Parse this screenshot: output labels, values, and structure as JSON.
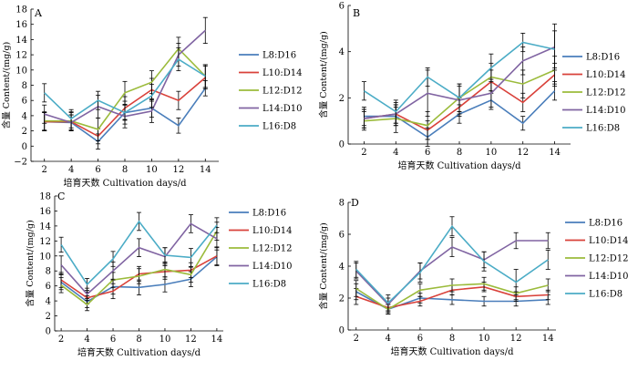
{
  "colors": {
    "L8:D16": "#4a7ebb",
    "L10:D14": "#d9413a",
    "L12:D12": "#9bbb3b",
    "L14:D10": "#8064a2",
    "L16:D8": "#4bacc6"
  },
  "chart_data": [
    {
      "type": "line",
      "panel_label": "A",
      "xlabel": "培育天数 Cultivation days/d",
      "ylabel": "含量 Content/(mg/g)",
      "x": [
        2,
        4,
        6,
        8,
        10,
        12,
        14
      ],
      "xlim": [
        1,
        15
      ],
      "ylim": [
        -2,
        18
      ],
      "yticks": [
        -2,
        0,
        2,
        4,
        6,
        8,
        10,
        12,
        14,
        16,
        18
      ],
      "legend_position": "right",
      "series": [
        {
          "name": "L8:D16",
          "values": [
            3.2,
            3.1,
            0.6,
            4.4,
            5.0,
            2.7,
            7.6
          ],
          "errors": [
            1.2,
            1.0,
            1.0,
            1.0,
            1.2,
            1.0,
            1.0
          ]
        },
        {
          "name": "L10:D14",
          "values": [
            3.2,
            3.2,
            1.3,
            5.0,
            7.4,
            6.0,
            9.0
          ],
          "errors": [
            1.2,
            1.2,
            1.0,
            1.5,
            1.5,
            1.2,
            1.5
          ]
        },
        {
          "name": "L12:D12",
          "values": [
            3.3,
            3.3,
            2.2,
            7.0,
            8.4,
            12.8,
            9.2
          ],
          "errors": [
            1.2,
            1.2,
            1.5,
            1.5,
            1.5,
            1.5,
            1.5
          ]
        },
        {
          "name": "L14:D10",
          "values": [
            4.2,
            3.1,
            5.2,
            3.9,
            4.6,
            12.0,
            15.2
          ],
          "errors": [
            1.2,
            1.0,
            1.5,
            1.5,
            1.5,
            1.5,
            1.7
          ]
        },
        {
          "name": "L16:D8",
          "values": [
            7.0,
            3.6,
            6.0,
            4.4,
            6.6,
            11.4,
            9.2
          ],
          "errors": [
            1.2,
            1.2,
            1.2,
            1.5,
            1.5,
            1.5,
            1.5
          ]
        }
      ]
    },
    {
      "type": "line",
      "panel_label": "B",
      "xlabel": "培育天数 Cultivation days/d",
      "ylabel": "含量 Content/(mg/g)",
      "x": [
        2,
        4,
        6,
        8,
        10,
        12,
        14
      ],
      "xlim": [
        1,
        15
      ],
      "ylim": [
        0,
        6
      ],
      "yticks": [
        0,
        2,
        4,
        6
      ],
      "legend_position": "right",
      "series": [
        {
          "name": "L8:D16",
          "values": [
            1.2,
            1.2,
            0.3,
            1.3,
            1.9,
            0.9,
            2.3
          ],
          "errors": [
            0.4,
            0.4,
            0.4,
            0.4,
            0.4,
            0.3,
            0.4
          ]
        },
        {
          "name": "L10:D14",
          "values": [
            1.1,
            1.3,
            0.6,
            1.6,
            2.7,
            1.8,
            3.0
          ],
          "errors": [
            0.4,
            0.4,
            0.4,
            0.4,
            0.5,
            0.4,
            0.5
          ]
        },
        {
          "name": "L12:D12",
          "values": [
            1.0,
            1.1,
            0.8,
            2.0,
            2.9,
            2.6,
            3.2
          ],
          "errors": [
            0.4,
            0.6,
            0.6,
            0.6,
            0.6,
            0.6,
            0.6
          ]
        },
        {
          "name": "L14:D10",
          "values": [
            1.1,
            1.3,
            2.2,
            1.9,
            2.2,
            3.6,
            4.2
          ],
          "errors": [
            0.4,
            0.5,
            1.0,
            0.6,
            0.6,
            0.6,
            1.0
          ]
        },
        {
          "name": "L16:D8",
          "values": [
            2.3,
            1.4,
            2.9,
            2.0,
            3.3,
            4.4,
            4.1
          ],
          "errors": [
            0.4,
            0.5,
            0.4,
            0.6,
            0.6,
            0.4,
            0.8
          ]
        }
      ]
    },
    {
      "type": "line",
      "panel_label": "C",
      "xlabel": "培育天数 Cultivation days/d",
      "ylabel": "含量 Content/(mg/g)",
      "x": [
        2,
        4,
        6,
        8,
        10,
        12,
        14
      ],
      "xlim": [
        1.5,
        14.5
      ],
      "ylim": [
        0,
        18
      ],
      "yticks": [
        0,
        2,
        4,
        6,
        8,
        10,
        12,
        14,
        16,
        18
      ],
      "legend_position": "right",
      "series": [
        {
          "name": "L8:D16",
          "values": [
            6.5,
            3.9,
            5.9,
            5.8,
            6.2,
            6.9,
            9.9
          ],
          "errors": [
            1.0,
            0.8,
            1.0,
            1.0,
            1.0,
            1.0,
            1.2
          ]
        },
        {
          "name": "L10:D14",
          "values": [
            6.8,
            4.4,
            5.3,
            7.6,
            7.9,
            8.1,
            10.0
          ],
          "errors": [
            1.0,
            0.8,
            1.0,
            1.0,
            1.0,
            1.0,
            1.2
          ]
        },
        {
          "name": "L12:D12",
          "values": [
            6.1,
            3.5,
            6.8,
            7.3,
            8.2,
            7.5,
            13.3
          ],
          "errors": [
            1.0,
            0.8,
            1.0,
            1.0,
            1.0,
            1.0,
            1.2
          ]
        },
        {
          "name": "L14:D10",
          "values": [
            8.8,
            4.9,
            8.0,
            11.1,
            9.9,
            14.3,
            12.3
          ],
          "errors": [
            1.2,
            0.8,
            1.2,
            1.2,
            1.2,
            1.2,
            1.5
          ]
        },
        {
          "name": "L16:D8",
          "values": [
            11.5,
            6.2,
            9.6,
            14.6,
            10.1,
            9.8,
            14.1
          ],
          "errors": [
            1.0,
            0.8,
            1.0,
            1.2,
            1.0,
            1.2,
            1.0
          ]
        }
      ]
    },
    {
      "type": "line",
      "panel_label": "D",
      "xlabel": "培育天数 Cultivation days/d",
      "ylabel": "含量 Content/(mg/g)",
      "x": [
        2,
        4,
        6,
        8,
        10,
        12,
        14
      ],
      "xlim": [
        1.5,
        14.5
      ],
      "ylim": [
        0,
        8
      ],
      "yticks": [
        0,
        2,
        4,
        6,
        8
      ],
      "legend_position": "right",
      "series": [
        {
          "name": "L8:D16",
          "values": [
            2.4,
            1.3,
            2.0,
            1.9,
            1.8,
            1.8,
            1.9
          ],
          "errors": [
            0.5,
            0.3,
            0.3,
            0.3,
            0.3,
            0.3,
            0.3
          ]
        },
        {
          "name": "L10:D14",
          "values": [
            2.1,
            1.4,
            1.8,
            2.5,
            2.7,
            2.1,
            2.2
          ],
          "errors": [
            0.5,
            0.3,
            0.3,
            0.3,
            0.3,
            0.3,
            0.3
          ]
        },
        {
          "name": "L12:D12",
          "values": [
            2.6,
            1.3,
            2.5,
            2.8,
            2.9,
            2.3,
            2.8
          ],
          "errors": [
            0.5,
            0.3,
            0.4,
            0.4,
            0.4,
            0.4,
            0.4
          ]
        },
        {
          "name": "L14:D10",
          "values": [
            3.7,
            1.6,
            3.7,
            5.2,
            4.4,
            5.6,
            5.6
          ],
          "errors": [
            0.5,
            0.4,
            0.5,
            0.6,
            0.5,
            0.5,
            0.5
          ]
        },
        {
          "name": "L16:D8",
          "values": [
            3.8,
            1.7,
            3.6,
            6.5,
            4.3,
            3.0,
            4.4
          ],
          "errors": [
            0.5,
            0.5,
            0.6,
            0.6,
            0.6,
            0.8,
            0.6
          ]
        }
      ]
    }
  ]
}
